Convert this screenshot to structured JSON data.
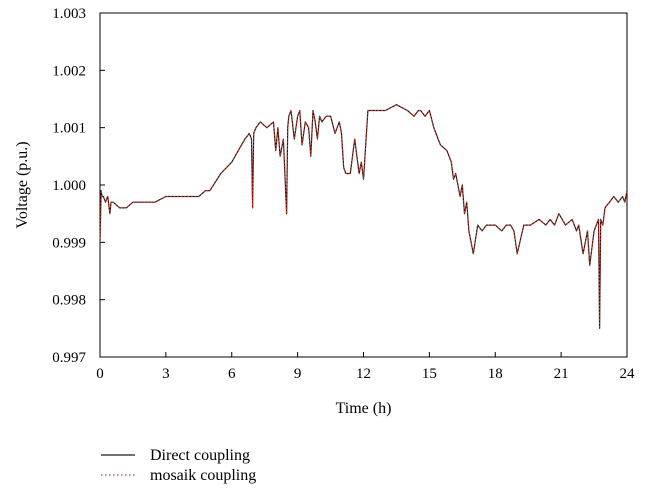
{
  "chart_data": {
    "type": "line",
    "xlabel": "Time (h)",
    "ylabel": "Voltage (p.u.)",
    "xlim": [
      0,
      24
    ],
    "ylim": [
      0.997,
      1.003
    ],
    "xticks": [
      "0",
      "3",
      "6",
      "9",
      "12",
      "15",
      "18",
      "21",
      "24"
    ],
    "yticks": [
      "0.997",
      "0.998",
      "0.999",
      "1.000",
      "1.001",
      "1.002",
      "1.003"
    ],
    "grid": false,
    "legend_position": "bottom-left",
    "series": [
      {
        "name": "Direct coupling",
        "color": "#1a1a1a",
        "style": "solid",
        "x": [
          0,
          0.05,
          0.1,
          0.15,
          0.25,
          0.35,
          0.45,
          0.5,
          0.6,
          0.9,
          1.2,
          1.5,
          1.8,
          2.0,
          2.5,
          3.0,
          3.5,
          4.0,
          4.5,
          4.8,
          5.0,
          5.5,
          6.0,
          6.3,
          6.6,
          6.8,
          6.9,
          6.95,
          7.0,
          7.1,
          7.3,
          7.6,
          7.9,
          8.0,
          8.1,
          8.2,
          8.35,
          8.5,
          8.55,
          8.6,
          8.7,
          8.85,
          9.0,
          9.1,
          9.2,
          9.35,
          9.5,
          9.6,
          9.7,
          9.8,
          9.9,
          10.0,
          10.1,
          10.3,
          10.5,
          10.7,
          10.9,
          11.0,
          11.1,
          11.2,
          11.4,
          11.6,
          11.8,
          11.9,
          12.0,
          12.2,
          12.5,
          13.0,
          13.5,
          14.0,
          14.3,
          14.5,
          14.6,
          14.8,
          15.0,
          15.2,
          15.5,
          15.8,
          16.0,
          16.1,
          16.2,
          16.3,
          16.4,
          16.5,
          16.6,
          16.7,
          16.8,
          17.0,
          17.2,
          17.4,
          17.6,
          17.8,
          18.0,
          18.3,
          18.5,
          18.7,
          18.85,
          19.0,
          19.3,
          19.6,
          20.0,
          20.3,
          20.5,
          20.7,
          20.9,
          21.2,
          21.5,
          21.7,
          21.8,
          22.0,
          22.2,
          22.3,
          22.5,
          22.7,
          22.75,
          22.8,
          22.9,
          23.0,
          23.2,
          23.4,
          23.6,
          23.8,
          23.9,
          24.0
        ],
        "values": [
          0.999,
          0.9999,
          0.9998,
          0.9998,
          0.9997,
          0.9998,
          0.9995,
          0.9997,
          0.9997,
          0.9996,
          0.9996,
          0.9997,
          0.9997,
          0.9997,
          0.9997,
          0.9998,
          0.9998,
          0.9998,
          0.9998,
          0.9999,
          0.9999,
          1.0002,
          1.0004,
          1.0006,
          1.0008,
          1.0009,
          1.0008,
          0.9996,
          1.0009,
          1.001,
          1.0011,
          1.001,
          1.0011,
          1.0006,
          1.001,
          1.0005,
          1.0008,
          0.9995,
          1.001,
          1.0012,
          1.0013,
          1.0008,
          1.0012,
          1.0013,
          1.0007,
          1.0011,
          1.001,
          1.0005,
          1.0013,
          1.0011,
          1.0008,
          1.0012,
          1.0011,
          1.0012,
          1.0012,
          1.0009,
          1.0011,
          1.0009,
          1.0003,
          1.0002,
          1.0002,
          1.0008,
          1.0002,
          1.0004,
          1.0001,
          1.0013,
          1.0013,
          1.0013,
          1.0014,
          1.0013,
          1.0012,
          1.0013,
          1.0013,
          1.0012,
          1.0013,
          1.001,
          1.0007,
          1.0006,
          1.0004,
          1.0001,
          1.0002,
          1.0,
          0.9998,
          1.0,
          0.9995,
          0.9997,
          0.9992,
          0.9988,
          0.9993,
          0.9992,
          0.9993,
          0.9993,
          0.9993,
          0.9992,
          0.9993,
          0.9993,
          0.9992,
          0.9988,
          0.9993,
          0.9993,
          0.9994,
          0.9993,
          0.9994,
          0.9993,
          0.9995,
          0.9993,
          0.9994,
          0.9992,
          0.9993,
          0.9988,
          0.9992,
          0.9986,
          0.9992,
          0.9994,
          0.9975,
          0.9994,
          0.9993,
          0.9996,
          0.9997,
          0.9998,
          0.9997,
          0.9998,
          0.9997,
          0.9999
        ]
      },
      {
        "name": "mosaik coupling",
        "color": "#e0301e",
        "style": "dotted",
        "x": [
          0,
          0.05,
          0.1,
          0.15,
          0.25,
          0.35,
          0.45,
          0.5,
          0.6,
          0.9,
          1.2,
          1.5,
          1.8,
          2.0,
          2.5,
          3.0,
          3.5,
          4.0,
          4.5,
          4.8,
          5.0,
          5.5,
          6.0,
          6.3,
          6.6,
          6.8,
          6.9,
          6.95,
          7.0,
          7.1,
          7.3,
          7.6,
          7.9,
          8.0,
          8.1,
          8.2,
          8.35,
          8.5,
          8.55,
          8.6,
          8.7,
          8.85,
          9.0,
          9.1,
          9.2,
          9.35,
          9.5,
          9.6,
          9.7,
          9.8,
          9.9,
          10.0,
          10.1,
          10.3,
          10.5,
          10.7,
          10.9,
          11.0,
          11.1,
          11.2,
          11.4,
          11.6,
          11.8,
          11.9,
          12.0,
          12.2,
          12.5,
          13.0,
          13.5,
          14.0,
          14.3,
          14.5,
          14.6,
          14.8,
          15.0,
          15.2,
          15.5,
          15.8,
          16.0,
          16.1,
          16.2,
          16.3,
          16.4,
          16.5,
          16.6,
          16.7,
          16.8,
          17.0,
          17.2,
          17.4,
          17.6,
          17.8,
          18.0,
          18.3,
          18.5,
          18.7,
          18.85,
          19.0,
          19.3,
          19.6,
          20.0,
          20.3,
          20.5,
          20.7,
          20.9,
          21.2,
          21.5,
          21.7,
          21.8,
          22.0,
          22.2,
          22.3,
          22.5,
          22.7,
          22.75,
          22.8,
          22.9,
          23.0,
          23.2,
          23.4,
          23.6,
          23.8,
          23.9,
          24.0
        ],
        "values": [
          0.999,
          0.9999,
          0.9998,
          0.9998,
          0.9997,
          0.9998,
          0.9995,
          0.9997,
          0.9997,
          0.9996,
          0.9996,
          0.9997,
          0.9997,
          0.9997,
          0.9997,
          0.9998,
          0.9998,
          0.9998,
          0.9998,
          0.9999,
          0.9999,
          1.0002,
          1.0004,
          1.0006,
          1.0008,
          1.0009,
          1.0008,
          0.9996,
          1.0009,
          1.001,
          1.0011,
          1.001,
          1.0011,
          1.0006,
          1.001,
          1.0005,
          1.0008,
          0.9995,
          1.001,
          1.0012,
          1.0013,
          1.0008,
          1.0012,
          1.0013,
          1.0007,
          1.0011,
          1.001,
          1.0005,
          1.0013,
          1.0011,
          1.0008,
          1.0012,
          1.0011,
          1.0012,
          1.0012,
          1.0009,
          1.0011,
          1.0009,
          1.0003,
          1.0002,
          1.0002,
          1.0008,
          1.0002,
          1.0004,
          1.0001,
          1.0013,
          1.0013,
          1.0013,
          1.0014,
          1.0013,
          1.0012,
          1.0013,
          1.0013,
          1.0012,
          1.0013,
          1.001,
          1.0007,
          1.0006,
          1.0004,
          1.0001,
          1.0002,
          1.0,
          0.9998,
          1.0,
          0.9995,
          0.9997,
          0.9992,
          0.9988,
          0.9993,
          0.9992,
          0.9993,
          0.9993,
          0.9993,
          0.9992,
          0.9993,
          0.9993,
          0.9992,
          0.9988,
          0.9993,
          0.9993,
          0.9994,
          0.9993,
          0.9994,
          0.9993,
          0.9995,
          0.9993,
          0.9994,
          0.9992,
          0.9993,
          0.9988,
          0.9992,
          0.9986,
          0.9992,
          0.9994,
          0.9975,
          0.9994,
          0.9993,
          0.9996,
          0.9997,
          0.9998,
          0.9997,
          0.9998,
          0.9997,
          0.9999
        ]
      }
    ]
  }
}
